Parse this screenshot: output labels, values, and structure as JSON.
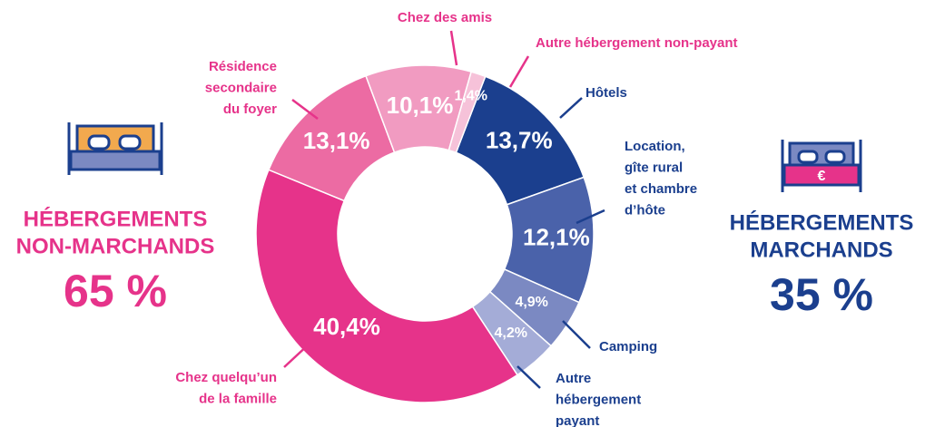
{
  "chart_data": {
    "type": "donut",
    "categories": [
      "Hôtels",
      "Location,\ngîte rural\net chambre\nd’hôte",
      "Camping",
      "Autre\nhébergement\npayant",
      "Chez quelqu’un\nde la famille",
      "Résidence\nsecondaire\ndu foyer",
      "Chez des amis",
      "Autre hébergement non-payant"
    ],
    "values": [
      13.7,
      12.1,
      4.9,
      4.2,
      40.4,
      13.1,
      10.1,
      1.4
    ],
    "value_labels": [
      "13,7%",
      "12,1%",
      "4,9%",
      "4,2%",
      "40,4%",
      "13,1%",
      "10,1%",
      "1,4%"
    ],
    "colors": [
      "#1b3f8e",
      "#4a62aa",
      "#7b89c2",
      "#a4acd7",
      "#e6338a",
      "#ec6ba3",
      "#f19bc1",
      "#f6c2d9"
    ],
    "label_colors": [
      "#1b3f8e",
      "#1b3f8e",
      "#1b3f8e",
      "#1b3f8e",
      "#e6338a",
      "#e6338a",
      "#e6338a",
      "#e6338a"
    ],
    "groups": [
      {
        "name": [
          "HÉBERGEMENTS",
          "NON-MARCHANDS"
        ],
        "share": "65 %",
        "color": "#e6338a"
      },
      {
        "name": [
          "HÉBERGEMENTS",
          "MARCHANDS"
        ],
        "share": "35 %",
        "color": "#1b3f8e"
      }
    ]
  }
}
